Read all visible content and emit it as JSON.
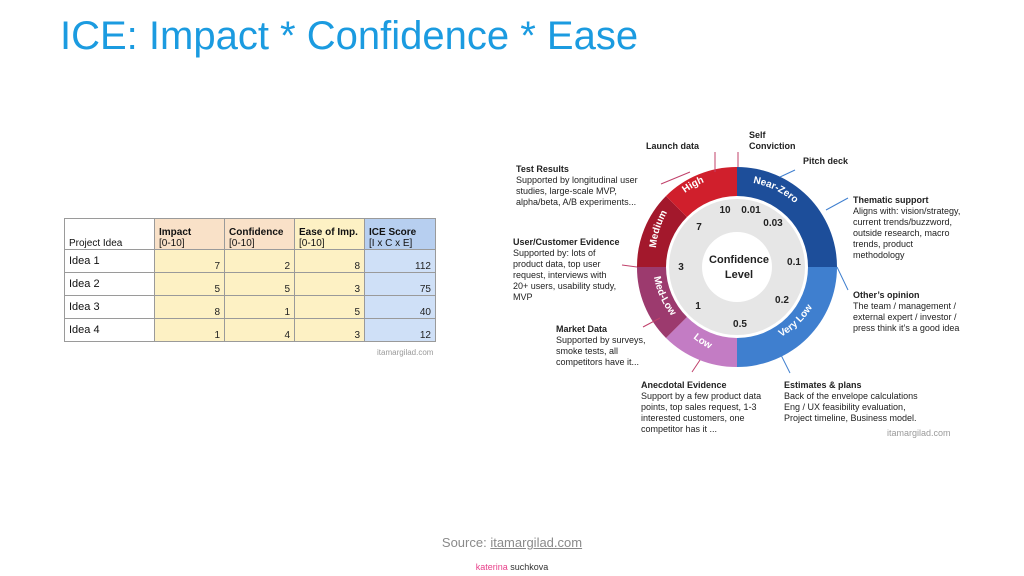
{
  "title": "ICE: Impact * Confidence * Ease",
  "table": {
    "headers": {
      "name": "Project Idea",
      "impact_top": "Impact",
      "impact_bottom": "[0-10]",
      "confidence_top": "Confidence",
      "confidence_bottom": "[0-10]",
      "ease_top": "Ease of Imp.",
      "ease_bottom": "[0-10]",
      "score_top": "ICE Score",
      "score_bottom": "[I x C x E]"
    },
    "rows": [
      {
        "name": "Idea 1",
        "impact": "7",
        "confidence": "2",
        "ease": "8",
        "score": "112"
      },
      {
        "name": "Idea 2",
        "impact": "5",
        "confidence": "5",
        "ease": "3",
        "score": "75"
      },
      {
        "name": "Idea 3",
        "impact": "8",
        "confidence": "1",
        "ease": "5",
        "score": "40"
      },
      {
        "name": "Idea 4",
        "impact": "1",
        "confidence": "4",
        "ease": "3",
        "score": "12"
      }
    ],
    "watermark": "itamargilad.com"
  },
  "meter": {
    "center_top": "Confidence",
    "center_bottom": "Level",
    "segments": [
      {
        "label": "Near-Zero",
        "color": "#1d4e9a"
      },
      {
        "label": "Very Low",
        "color": "#3f7fcf"
      },
      {
        "label": "Low",
        "color": "#c37cc4"
      },
      {
        "label": "Med-Low",
        "color": "#9c3a6e"
      },
      {
        "label": "Medium",
        "color": "#a3182c"
      },
      {
        "label": "High",
        "color": "#d01f2c"
      }
    ],
    "values": [
      "0.01",
      "0.03",
      "0.1",
      "0.2",
      "0.5",
      "1",
      "3",
      "7",
      "10"
    ],
    "watermark": "itamargilad.com"
  },
  "annotations": [
    {
      "title": "Self Conviction",
      "text": ""
    },
    {
      "title": "Launch data",
      "text": ""
    },
    {
      "title": "Pitch deck",
      "text": ""
    },
    {
      "title": "Test Results",
      "text": "Supported by longitudinal user studies, large-scale MVP, alpha/beta, A/B experiments..."
    },
    {
      "title": "Thematic support",
      "text": "Aligns with: vision/strategy, current trends/buzzword, outside research, macro trends, product methodology"
    },
    {
      "title": "User/Customer Evidence",
      "text": "Supported by: lots of product data, top user request, interviews with 20+ users, usability study, MVP"
    },
    {
      "title": "Other’s opinion",
      "text": "The team / management / external expert / investor / press think it’s a good idea"
    },
    {
      "title": "Market Data",
      "text": "Supported by surveys, smoke tests, all competitors have it..."
    },
    {
      "title": "Anecdotal Evidence",
      "text": "Support by a few product data points, top sales request, 1-3 interested customers, one competitor has it ..."
    },
    {
      "title": "Estimates & plans",
      "text": "Back of the envelope calculations Eng / UX feasibility evaluation, Project timeline, Business model."
    }
  ],
  "source": {
    "prefix": "Source: ",
    "link": "itamargilad.com"
  },
  "brand": {
    "first": "katerina",
    "last": "suchkova"
  },
  "colors": {
    "title": "#1b9be0",
    "accent_pink": "#e8408a"
  }
}
